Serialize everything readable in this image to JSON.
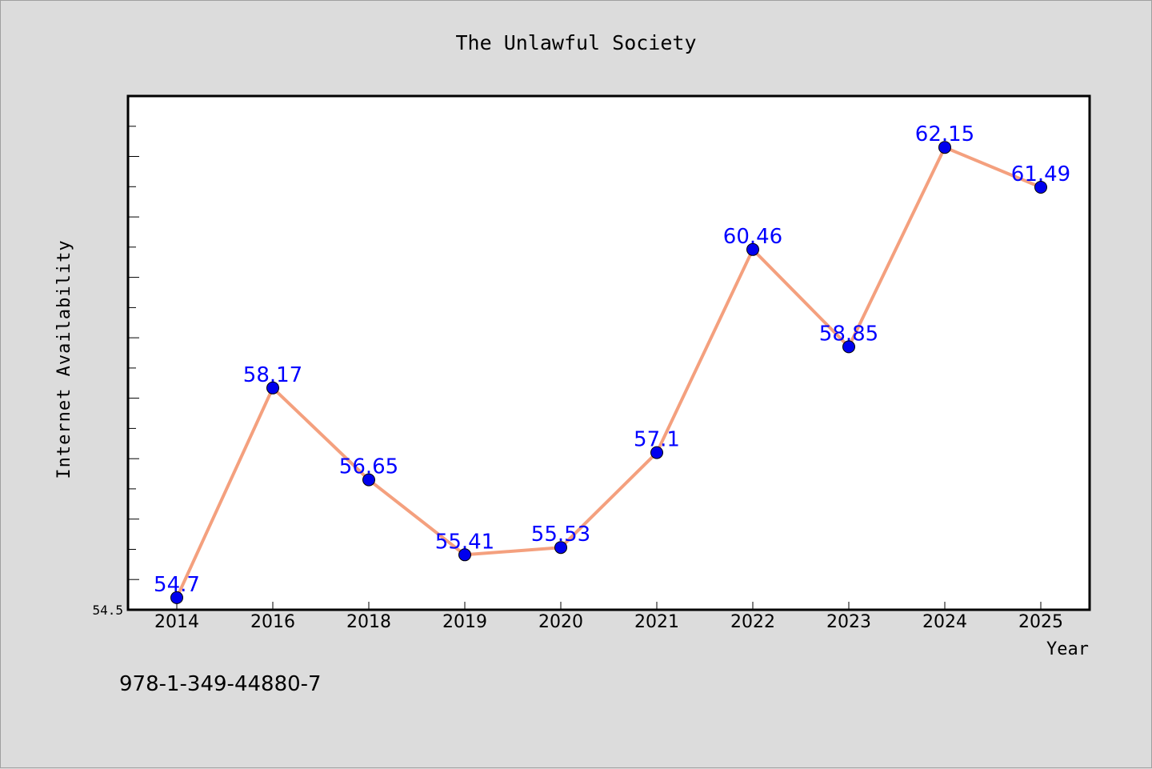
{
  "chart_data": {
    "type": "line",
    "title": "The Unlawful Society",
    "xlabel": "Year",
    "ylabel": "Internet Availability",
    "categories": [
      "2014",
      "2016",
      "2018",
      "2019",
      "2020",
      "2021",
      "2022",
      "2023",
      "2024",
      "2025"
    ],
    "series": [
      {
        "values": [
          54.7,
          58.17,
          56.65,
          55.41,
          55.53,
          57.1,
          60.46,
          58.85,
          62.15,
          61.49
        ],
        "labels": [
          "54.7",
          "58.17",
          "56.65",
          "55.41",
          "55.53",
          "57.1",
          "60.46",
          "58.85",
          "62.15",
          "61.49"
        ],
        "line_color": "#f4a07e",
        "marker_color": "#0000ee",
        "label_color": "#0000ff"
      }
    ],
    "y_tick_labels": [
      "54.5"
    ],
    "ylim": [
      54.5,
      63.0
    ],
    "grid": false,
    "legend": "none"
  },
  "footer": {
    "isbn": "978-1-349-44880-7"
  },
  "colors": {
    "background": "#dcdcdc",
    "plot_background": "#ffffff",
    "axis": "#000000"
  }
}
